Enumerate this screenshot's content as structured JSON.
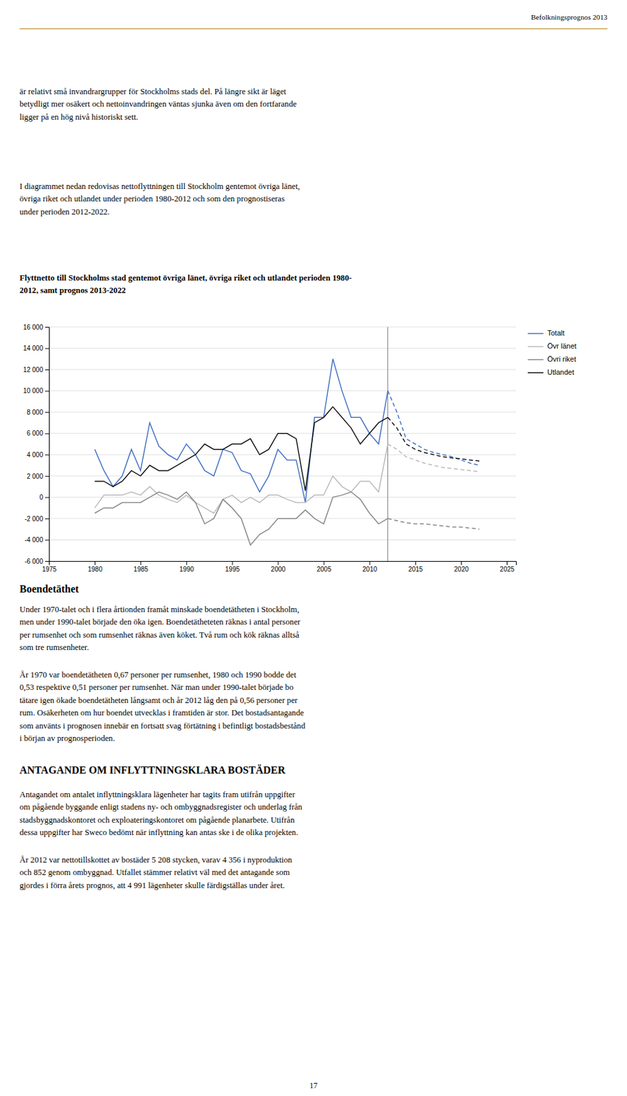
{
  "header": "Befolkningsprognos 2013",
  "intro": [
    [
      "är relativt små invandrargrupper för Stockholms stads del. På längre sikt är läget",
      "betydligt mer osäkert och nettoinvandringen väntas sjunka även om den fortfarande",
      "ligger på en hög nivå historiskt sett."
    ],
    [
      "I diagrammet nedan redovisas nettoflyttningen till Stockholm gentemot övriga länet,",
      "övriga riket och utlandet under perioden 1980-2012 och som den prognostiseras",
      "under perioden 2012-2022."
    ]
  ],
  "chart_data": {
    "type": "line",
    "title": [
      "Flyttnetto till Stockholms stad gentemot övriga länet, övriga riket och utlandet perioden 1980-",
      "2012, samt prognos 2013-2022"
    ],
    "xlim": [
      1975,
      2026
    ],
    "xticks": [
      1975,
      1980,
      1985,
      1990,
      1995,
      2000,
      2005,
      2010,
      2015,
      2020,
      2025
    ],
    "ylim": [
      -6000,
      16000
    ],
    "yticks": [
      {
        "value": -6000,
        "label": "-6 000"
      },
      {
        "value": -4000,
        "label": "-4 000"
      },
      {
        "value": -2000,
        "label": "-2 000"
      },
      0,
      {
        "value": 2000,
        "label": "2 000"
      },
      {
        "value": 4000,
        "label": "4 000"
      },
      {
        "value": 6000,
        "label": "6 000"
      },
      {
        "value": 8000,
        "label": "8 000"
      },
      {
        "value": 10000,
        "label": "10 000"
      },
      {
        "value": 12000,
        "label": "12 000"
      },
      {
        "value": 14000,
        "label": "14 000"
      },
      {
        "value": 16000,
        "label": "16 000"
      }
    ],
    "grid": true,
    "legend": "right",
    "vline": 2012,
    "series": [
      {
        "name": "Totalt",
        "color": "#4472C4",
        "line_style": "solid",
        "x": [
          1980,
          1981,
          1982,
          1983,
          1984,
          1985,
          1986,
          1987,
          1988,
          1989,
          1990,
          1991,
          1992,
          1993,
          1994,
          1995,
          1996,
          1997,
          1998,
          1999,
          2000,
          2001,
          2002,
          2003,
          2004,
          2005,
          2006,
          2007,
          2008,
          2009,
          2010,
          2011,
          2012
        ],
        "values": [
          4500,
          2500,
          1000,
          2000,
          4500,
          2500,
          7000,
          4800,
          4000,
          3500,
          5000,
          4000,
          2500,
          2000,
          4500,
          4200,
          2500,
          2200,
          500,
          2000,
          4500,
          3500,
          3500,
          -500,
          7500,
          7500,
          13000,
          10000,
          7500,
          7500,
          6000,
          5000,
          10000
        ]
      },
      {
        "name": "Övr länet",
        "color": "#BBBBBB",
        "line_style": "solid",
        "x": [
          1980,
          1981,
          1982,
          1983,
          1984,
          1985,
          1986,
          1987,
          1988,
          1989,
          1990,
          1991,
          1992,
          1993,
          1994,
          1995,
          1996,
          1997,
          1998,
          1999,
          2000,
          2001,
          2002,
          2003,
          2004,
          2005,
          2006,
          2007,
          2008,
          2009,
          2010,
          2011,
          2012
        ],
        "values": [
          -1000,
          200,
          200,
          200,
          500,
          200,
          1000,
          200,
          -200,
          -500,
          200,
          -500,
          -1000,
          -1500,
          -200,
          200,
          -500,
          0,
          -500,
          200,
          200,
          -200,
          -500,
          -500,
          200,
          200,
          2000,
          1000,
          500,
          1500,
          1500,
          500,
          5000
        ]
      },
      {
        "name": "Övri riket",
        "color": "#888888",
        "line_style": "solid",
        "x": [
          1980,
          1981,
          1982,
          1983,
          1984,
          1985,
          1986,
          1987,
          1988,
          1989,
          1990,
          1991,
          1992,
          1993,
          1994,
          1995,
          1996,
          1997,
          1998,
          1999,
          2000,
          2001,
          2002,
          2003,
          2004,
          2005,
          2006,
          2007,
          2008,
          2009,
          2010,
          2011,
          2012
        ],
        "values": [
          -1500,
          -1000,
          -1000,
          -500,
          -500,
          -500,
          0,
          500,
          200,
          -200,
          500,
          -500,
          -2500,
          -2000,
          -200,
          -1000,
          -2000,
          -4500,
          -3500,
          -3000,
          -2000,
          -2000,
          -2000,
          -1200,
          -2000,
          -2500,
          0,
          200,
          500,
          -200,
          -1500,
          -2500,
          -2000
        ]
      },
      {
        "name": "Utlandet",
        "color": "#111111",
        "line_style": "solid",
        "x": [
          1980,
          1981,
          1982,
          1983,
          1984,
          1985,
          1986,
          1987,
          1988,
          1989,
          1990,
          1991,
          1992,
          1993,
          1994,
          1995,
          1996,
          1997,
          1998,
          1999,
          2000,
          2001,
          2002,
          2003,
          2004,
          2005,
          2006,
          2007,
          2008,
          2009,
          2010,
          2011,
          2012
        ],
        "values": [
          1500,
          1500,
          1000,
          1500,
          2500,
          2000,
          3000,
          2500,
          2500,
          3000,
          3500,
          4000,
          5000,
          4500,
          4500,
          5000,
          5000,
          5500,
          4000,
          4500,
          6000,
          6000,
          5500,
          600,
          7000,
          7500,
          8500,
          7500,
          6500,
          5000,
          6000,
          7000,
          7500
        ]
      },
      {
        "color": "#4472C4",
        "line_style": "dashed",
        "x": [
          2012,
          2013,
          2014,
          2015,
          2016,
          2017,
          2018,
          2019,
          2020,
          2021,
          2022
        ],
        "values": [
          10000,
          8000,
          5500,
          5000,
          4500,
          4200,
          4000,
          3800,
          3500,
          3200,
          3000
        ]
      },
      {
        "color": "#BBBBBB",
        "line_style": "dashed",
        "x": [
          2012,
          2013,
          2014,
          2015,
          2016,
          2017,
          2018,
          2019,
          2020,
          2021,
          2022
        ],
        "values": [
          5000,
          4500,
          3800,
          3500,
          3200,
          3000,
          2800,
          2700,
          2600,
          2500,
          2400
        ]
      },
      {
        "color": "#888888",
        "line_style": "dashed",
        "x": [
          2012,
          2013,
          2014,
          2015,
          2016,
          2017,
          2018,
          2019,
          2020,
          2021,
          2022
        ],
        "values": [
          -2000,
          -2200,
          -2400,
          -2500,
          -2500,
          -2600,
          -2700,
          -2800,
          -2800,
          -2900,
          -3000
        ]
      },
      {
        "color": "#111111",
        "line_style": "dashed",
        "x": [
          2012,
          2013,
          2014,
          2015,
          2016,
          2017,
          2018,
          2019,
          2020,
          2021,
          2022
        ],
        "values": [
          7500,
          6500,
          5000,
          4500,
          4200,
          4000,
          3800,
          3700,
          3600,
          3500,
          3400
        ]
      }
    ]
  },
  "sections": [
    {
      "title": "Boendetäthet",
      "paragraphs": [
        [
          "Under 1970-talet och i flera årtionden framåt minskade boendetätheten i Stockholm,",
          "men under 1990-talet började den öka igen. Boendetätheteten räknas i antal personer",
          "per rumsenhet och som rumsenhet räknas även köket. Två rum och kök räknas alltså",
          "som tre rumsenheter."
        ],
        [
          "År 1970 var boendetätheten 0,67 personer per rumsenhet, 1980 och 1990 bodde det",
          "0,53 respektive 0,51 personer per rumsenhet. När man under 1990-talet började bo",
          "tätare igen ökade boendetätheten långsamt och år 2012 låg den på 0,56 personer per",
          "rum. Osäkerheten om hur boendet utvecklas i framtiden är stor. Det bostadsantagande",
          "som använts i prognosen innebär en fortsatt svag förtätning i befintligt bostadsbestånd",
          "i början av prognosperioden."
        ]
      ]
    },
    {
      "title": "ANTAGANDE OM INFLYTTNINGSKLARA BOSTÄDER",
      "paragraphs": [
        [
          "Antagandet om antalet inflyttningsklara lägenheter har tagits fram utifrån uppgifter",
          "om pågående byggande enligt stadens ny- och ombyggnadsregister och underlag från",
          "stadsbyggnadskontoret och exploateringskontoret om pågående planarbete. Utifrån",
          "dessa uppgifter har Sweco bedömt när inflyttning kan antas ske i de olika projekten."
        ],
        [
          "År 2012 var nettotillskottet av bostäder 5 208 stycken, varav 4 356 i nyproduktion",
          "och 852 genom ombyggnad. Utfallet stämmer relativt väl med det antagande som",
          "gjordes i förra årets prognos, att 4 991 lägenheter skulle färdigställas under året."
        ]
      ]
    }
  ],
  "page_number": "17"
}
